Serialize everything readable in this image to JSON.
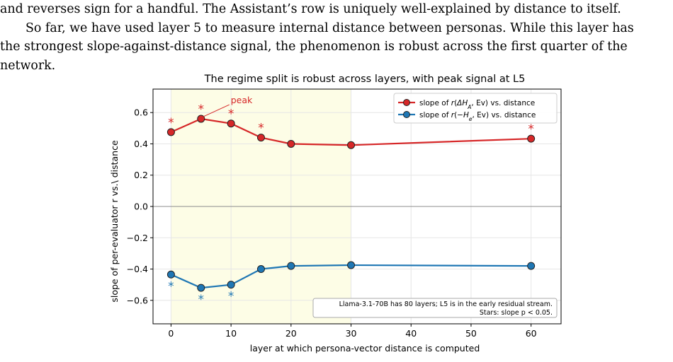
{
  "text": {
    "line1": "and reverses sign for a handful. The Assistant’s row is uniquely well-explained by distance to itself.",
    "line2": "So far, we have used layer 5 to measure internal distance between personas. While this layer has",
    "line3": "the strongest slope-against-distance signal, the phenomenon is robust across the first quarter of the",
    "line4": "network."
  },
  "chart_data": {
    "type": "line",
    "title": "The regime split is robust across layers, with peak signal at L5",
    "xlabel": "layer at which persona-vector distance is computed",
    "ylabel": "slope of per-evaluator r vs.\\ distance",
    "xlim": [
      -3,
      65
    ],
    "ylim": [
      -0.75,
      0.75
    ],
    "xticks": [
      "0",
      "10",
      "20",
      "30",
      "40",
      "50",
      "60"
    ],
    "yticks": [
      "0.6",
      "0.4",
      "0.2",
      "0.0",
      "−0.2",
      "−0.4",
      "−0.6"
    ],
    "grid": true,
    "legend_position": "top-right",
    "shaded_span": [
      0,
      30
    ],
    "zero_line": 0,
    "series": [
      {
        "name": "slope of r(ΔH_A, Ev) vs. distance",
        "legend_main": "slope of ",
        "color": "#d62728",
        "x": [
          0,
          5,
          10,
          15,
          20,
          30,
          60
        ],
        "y": [
          0.475,
          0.56,
          0.53,
          0.44,
          0.4,
          0.392,
          0.433
        ],
        "significant": [
          true,
          true,
          true,
          true,
          false,
          false,
          true
        ]
      },
      {
        "name": "slope of r(−H_e, Ev) vs. distance",
        "legend_main": "slope of ",
        "color": "#1f77b4",
        "x": [
          0,
          5,
          10,
          15,
          20,
          30,
          60
        ],
        "y": [
          -0.435,
          -0.52,
          -0.5,
          -0.4,
          -0.38,
          -0.375,
          -0.38
        ],
        "significant": [
          true,
          true,
          true,
          false,
          false,
          false,
          false
        ]
      }
    ],
    "annotations": {
      "peak_label": "peak",
      "star": "*",
      "note_line1": "Llama-3.1-70B has 80 layers; L5 is in the early residual stream.",
      "note_line2": "Stars: slope p < 0.05."
    }
  }
}
